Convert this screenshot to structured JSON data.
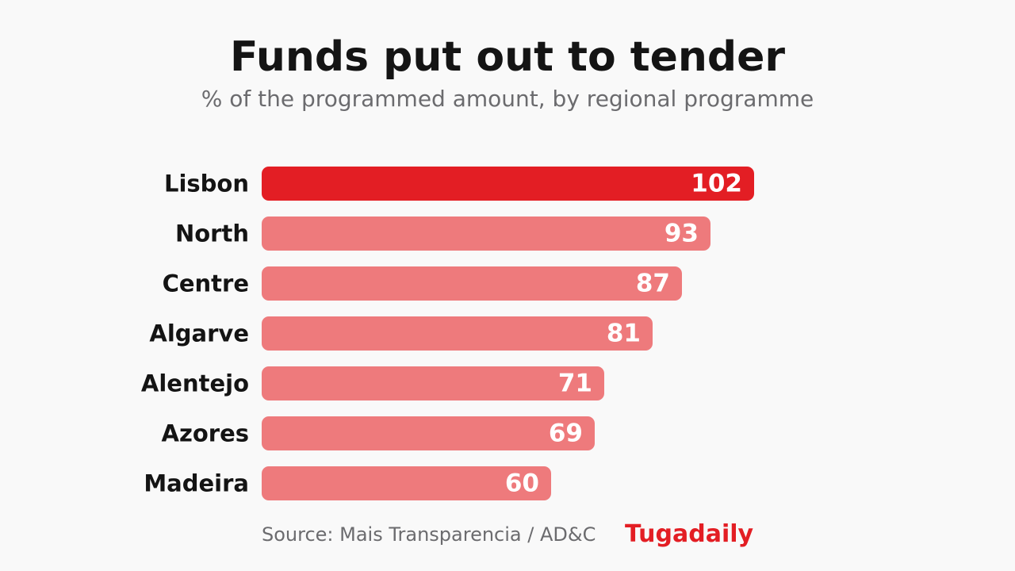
{
  "title": "Funds put out to tender",
  "subtitle": "% of the programmed amount, by regional programme",
  "source": "Source: Mais Transparencia / AD&C",
  "brand": "Tugadaily",
  "colors": {
    "highlight": "#e31e24",
    "bar": "#ee7a7c",
    "label": "#141414",
    "value_text": "#ffffff",
    "muted": "#6b6b6e",
    "background": "#f9f9f9"
  },
  "chart_data": {
    "type": "bar",
    "orientation": "horizontal",
    "categories": [
      "Lisbon",
      "North",
      "Centre",
      "Algarve",
      "Alentejo",
      "Azores",
      "Madeira"
    ],
    "values": [
      102,
      93,
      87,
      81,
      71,
      69,
      60
    ],
    "highlight_category": "Lisbon",
    "title": "Funds put out to tender",
    "subtitle": "% of the programmed amount, by regional programme",
    "xlabel": "",
    "ylabel": "",
    "xlim": [
      0,
      102
    ],
    "grid": false,
    "legend": "none",
    "data_labels": true
  }
}
